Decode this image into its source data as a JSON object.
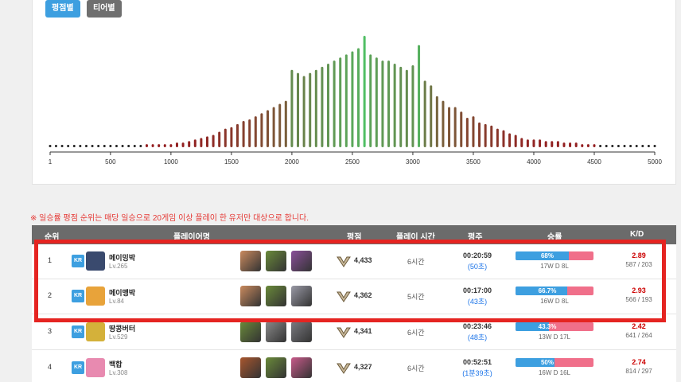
{
  "buttons": {
    "score": "평점별",
    "tier": "티어별"
  },
  "chart_data": {
    "type": "bar",
    "title": "",
    "xlabel": "",
    "ylabel": "",
    "xlim": [
      1,
      5000
    ],
    "tick_labels": [
      "1",
      "500",
      "1000",
      "1500",
      "2000",
      "2500",
      "3000",
      "3500",
      "4000",
      "4500",
      "5000"
    ],
    "tick_values": [
      1,
      500,
      1000,
      1500,
      2000,
      2500,
      3000,
      3500,
      4000,
      4500,
      5000
    ],
    "x": [
      1,
      50,
      100,
      150,
      200,
      250,
      300,
      350,
      400,
      450,
      500,
      550,
      600,
      650,
      700,
      750,
      800,
      850,
      900,
      950,
      1000,
      1050,
      1100,
      1150,
      1200,
      1250,
      1300,
      1350,
      1400,
      1450,
      1500,
      1550,
      1600,
      1650,
      1700,
      1750,
      1800,
      1850,
      1900,
      1950,
      2000,
      2050,
      2100,
      2150,
      2200,
      2250,
      2300,
      2350,
      2400,
      2450,
      2500,
      2550,
      2600,
      2650,
      2700,
      2750,
      2800,
      2850,
      2900,
      2950,
      3000,
      3050,
      3100,
      3150,
      3200,
      3250,
      3300,
      3350,
      3400,
      3450,
      3500,
      3550,
      3600,
      3650,
      3700,
      3750,
      3800,
      3850,
      3900,
      3950,
      4000,
      4050,
      4100,
      4150,
      4200,
      4250,
      4300,
      4350,
      4400,
      4450,
      4500,
      4550,
      4600,
      4650,
      4700,
      4750,
      4800,
      4850,
      4900,
      4950,
      5000
    ],
    "values": [
      1,
      1,
      1,
      1,
      1,
      1,
      1,
      1,
      1,
      1,
      1,
      1,
      1,
      1,
      1,
      1,
      2,
      2,
      2,
      2,
      2,
      3,
      3,
      4,
      5,
      6,
      7,
      8,
      10,
      12,
      13,
      15,
      17,
      18,
      20,
      22,
      24,
      26,
      28,
      30,
      50,
      48,
      46,
      48,
      50,
      52,
      54,
      56,
      58,
      60,
      62,
      64,
      72,
      60,
      58,
      56,
      56,
      54,
      52,
      50,
      53,
      66,
      43,
      40,
      33,
      30,
      26,
      26,
      23,
      19,
      20,
      16,
      15,
      14,
      12,
      11,
      9,
      8,
      6,
      5,
      5,
      5,
      4,
      4,
      4,
      3,
      3,
      3,
      2,
      2,
      2,
      1,
      1,
      1,
      1,
      1,
      1,
      1,
      1,
      1,
      1
    ]
  },
  "notice": "※ 일승률 평점 순위는 매당 일승으로 20게임 이상 플레이 한 유저만 대상으로 합니다.",
  "table": {
    "headers": {
      "rank": "순위",
      "player": "플레이어명",
      "score": "평점",
      "playtime": "플레이 시간",
      "avg": "평주",
      "winrate": "승률",
      "kd": "K/D"
    },
    "rows": [
      {
        "rank": "1",
        "region": "KR",
        "name": "메이밍박",
        "level": "Lv.265",
        "avatar_color": "#3a4a6e",
        "heroes": [
          "#c98a5e",
          "#6a8a3a",
          "#8a4f9a"
        ],
        "score": "4,433",
        "playtime": "6시간",
        "avg_time": "00:20:59",
        "avg_sub": "(50초)",
        "win_pct": 0.68,
        "win_label": "68%",
        "record": "17W D 8L",
        "kd": "2.89",
        "kd_detail": "587 / 203"
      },
      {
        "rank": "2",
        "region": "KR",
        "name": "메이맹박",
        "level": "Lv.84",
        "avatar_color": "#e8a33a",
        "heroes": [
          "#c98a5e",
          "#6a8a3a",
          "#9a9aa6"
        ],
        "score": "4,362",
        "playtime": "5시간",
        "avg_time": "00:17:00",
        "avg_sub": "(43초)",
        "win_pct": 0.667,
        "win_label": "66.7%",
        "record": "16W D 8L",
        "kd": "2.93",
        "kd_detail": "566 / 193"
      },
      {
        "rank": "3",
        "region": "KR",
        "name": "땅콩버터",
        "level": "Lv.529",
        "avatar_color": "#d4b13a",
        "heroes": [
          "#6a8a3a",
          "#8a8a8a",
          "#7a7a80"
        ],
        "score": "4,341",
        "playtime": "6시간",
        "avg_time": "00:23:46",
        "avg_sub": "(48초)",
        "win_pct": 0.433,
        "win_label": "43.3%",
        "record": "13W D 17L",
        "kd": "2.42",
        "kd_detail": "641 / 264"
      },
      {
        "rank": "4",
        "region": "KR",
        "name": "백합",
        "level": "Lv.308",
        "avatar_color": "#e88ab0",
        "heroes": [
          "#a8562e",
          "#6a8a3a",
          "#c85a8a"
        ],
        "score": "4,327",
        "playtime": "6시간",
        "avg_time": "00:52:51",
        "avg_sub": "(1분39초)",
        "win_pct": 0.5,
        "win_label": "50%",
        "record": "16W D 16L",
        "kd": "2.74",
        "kd_detail": "814 / 297"
      }
    ]
  }
}
